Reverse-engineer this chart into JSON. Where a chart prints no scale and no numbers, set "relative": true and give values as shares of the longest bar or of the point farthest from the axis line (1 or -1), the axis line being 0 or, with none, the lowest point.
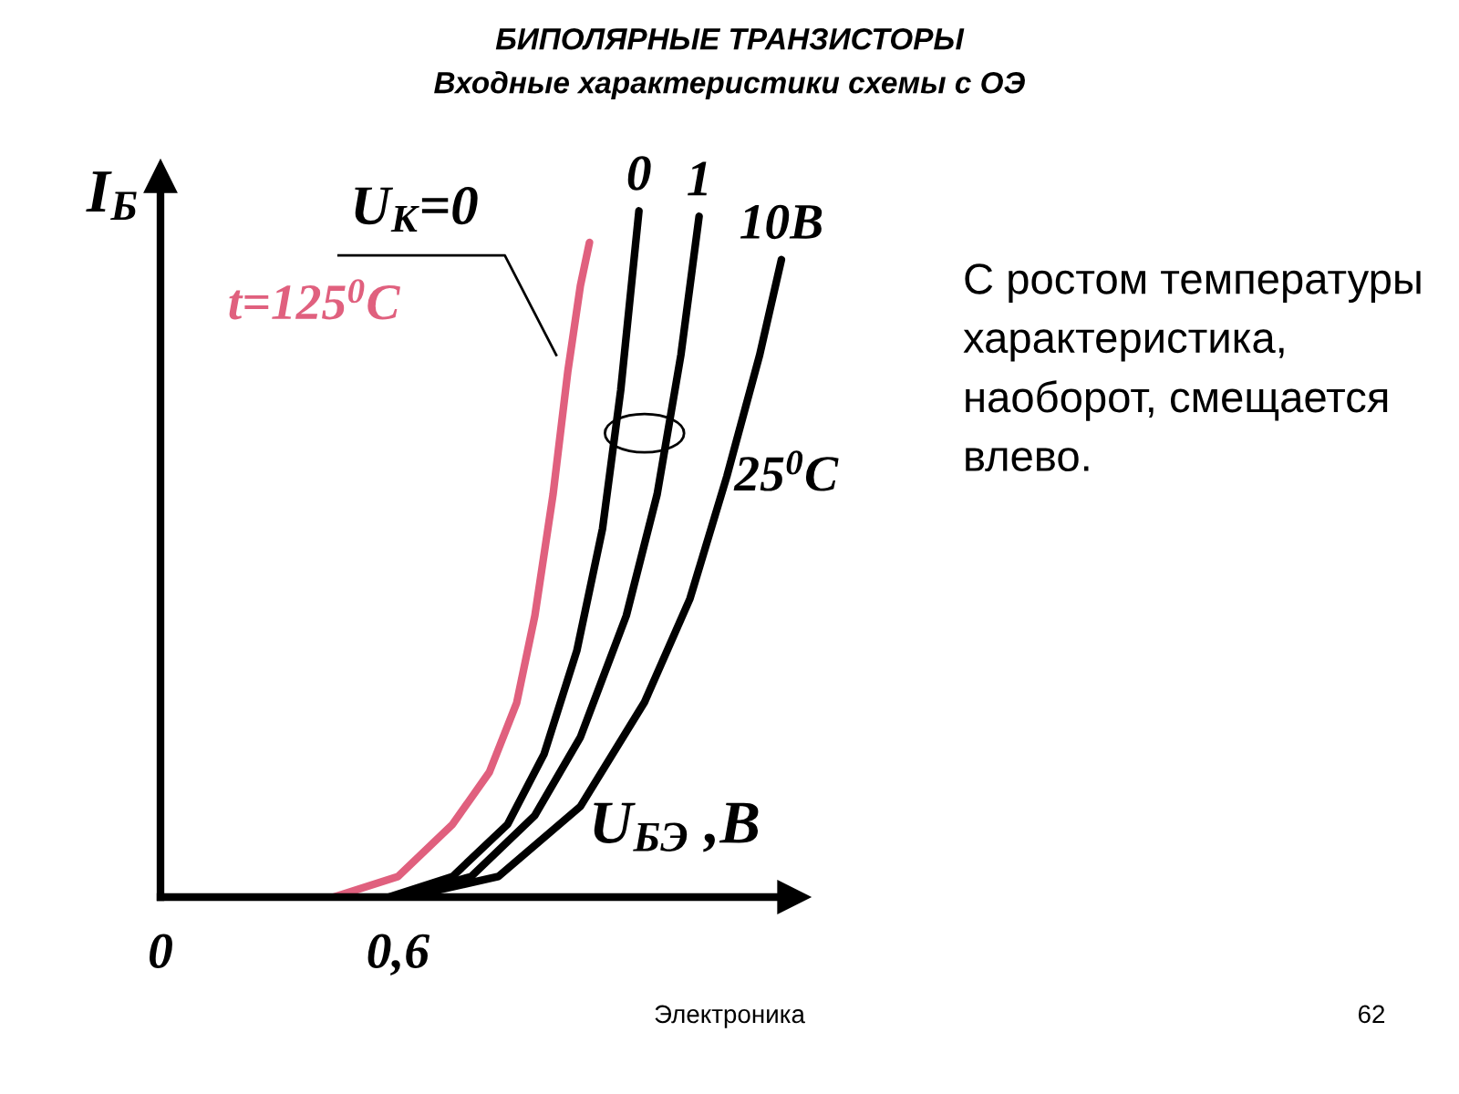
{
  "chart_data": {
    "type": "line",
    "title": "БИПОЛЯРНЫЕ ТРАНЗИСТОРЫ",
    "subtitle": "Входные характеристики схемы с ОЭ",
    "xlabel": "U$_{БЭ}$ ,B",
    "ylabel": "I$_{Б}$",
    "relative": true,
    "xlim": [
      0,
      1.6
    ],
    "xticks": [
      0,
      {
        "value": 0.6,
        "label": "0,6"
      }
    ],
    "tick_labels": "x",
    "grid": false,
    "legend": false,
    "marker": "none",
    "line_style": "solid",
    "annotations": [
      "U$_{К}$=0",
      "25$^{0}$C",
      "С ростом температуры характеристика, наоборот, смещается влево.",
      "Электроника",
      "62"
    ],
    "series": [
      {
        "name": "t=125$^{0}$C",
        "color": "#e0607e",
        "x": [
          0.438,
          0.6,
          0.738,
          0.831,
          0.9,
          0.946,
          0.992,
          1.029,
          1.061,
          1.084
        ],
        "values": [
          0,
          0.03,
          0.106,
          0.182,
          0.283,
          0.41,
          0.587,
          0.765,
          0.891,
          0.954
        ]
      },
      {
        "name": "0",
        "color": "#000000",
        "x": [
          0.577,
          0.738,
          0.877,
          0.969,
          1.052,
          1.117,
          1.163,
          1.209
        ],
        "values": [
          0,
          0.03,
          0.106,
          0.208,
          0.359,
          0.537,
          0.739,
          1.0
        ]
      },
      {
        "name": "1",
        "color": "#000000",
        "x": [
          0.6,
          0.785,
          0.946,
          1.061,
          1.177,
          1.255,
          1.315,
          1.361
        ],
        "values": [
          0,
          0.03,
          0.119,
          0.233,
          0.41,
          0.587,
          0.79,
          0.992
        ]
      },
      {
        "name": "10B",
        "color": "#000000",
        "x": [
          0.623,
          0.854,
          1.061,
          1.223,
          1.338,
          1.431,
          1.514,
          1.569
        ],
        "values": [
          0,
          0.03,
          0.132,
          0.284,
          0.435,
          0.613,
          0.79,
          0.929
        ]
      }
    ]
  }
}
